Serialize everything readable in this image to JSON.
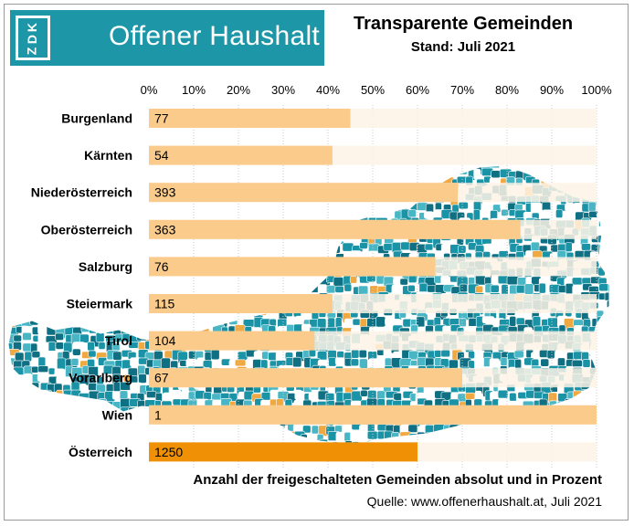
{
  "header": {
    "logo_mark": "KDZ",
    "logo_text": "Offener Haushalt",
    "title": "Transparente Gemeinden",
    "subtitle": "Stand: Juli 2021"
  },
  "footer": {
    "title": "Anzahl der freigeschalteten Gemeinden absolut und in Prozent",
    "source": "Quelle: www.offenerhaushalt.at, Juli 2021"
  },
  "colors": {
    "bar": "#fbcb8c",
    "bar_total": "#ef9005",
    "track": "#fdf3e6",
    "map_teal": "#1b93a6",
    "map_dark": "#0f7083",
    "map_light": "#48b6c4",
    "map_orange": "#f0a840",
    "logo_bg": "#1d96a8"
  },
  "chart_data": {
    "type": "bar",
    "orientation": "horizontal",
    "x_ticks": [
      "0%",
      "10%",
      "20%",
      "30%",
      "40%",
      "50%",
      "60%",
      "70%",
      "80%",
      "90%",
      "100%"
    ],
    "xlim": [
      0,
      100
    ],
    "categories": [
      "Burgenland",
      "Kärnten",
      "Niederösterreich",
      "Oberösterreich",
      "Salzburg",
      "Steiermark",
      "Tirol",
      "Vorarlberg",
      "Wien",
      "Österreich"
    ],
    "values_percent": [
      45,
      41,
      69,
      83,
      64,
      41,
      37,
      70,
      100,
      60
    ],
    "labels": [
      "77",
      "54",
      "393",
      "363",
      "76",
      "115",
      "104",
      "67",
      "1",
      "1250"
    ],
    "highlight": "Österreich"
  }
}
